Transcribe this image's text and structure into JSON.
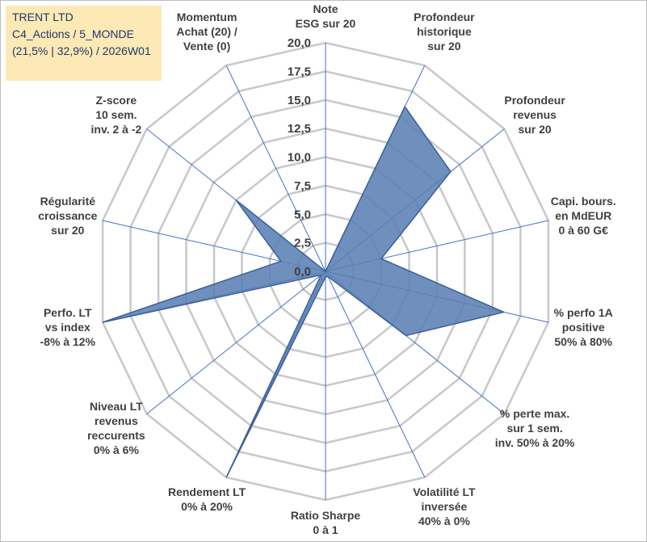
{
  "info_box": {
    "line1": "TRENT LTD",
    "line2": "C4_Actions / 5_MONDE",
    "line3": "(21,5% | 32,9%) / 2026W01"
  },
  "chart_data": {
    "type": "radar",
    "r_min": 0,
    "r_max": 20,
    "r_step": 2.5,
    "r_tick_labels": [
      "0,0",
      "2,5",
      "5,0",
      "7,5",
      "10,0",
      "12,5",
      "15,0",
      "17,5",
      "20,0"
    ],
    "axes": [
      {
        "label": [
          "Note",
          "ESG sur 20"
        ],
        "value": 0
      },
      {
        "label": [
          "Profondeur",
          "historique",
          "sur 20"
        ],
        "value": 16
      },
      {
        "label": [
          "Profondeur",
          "revenus",
          "sur 20"
        ],
        "value": 14
      },
      {
        "label": [
          "Capi. bours.",
          "en MdEUR",
          "0 à 60 G€"
        ],
        "value": 5
      },
      {
        "label": [
          "% perfo 1A",
          "positive",
          "50% à 80%"
        ],
        "value": 16
      },
      {
        "label": [
          "% perte max.",
          "sur 1 sem.",
          "inv. 50% à 20%"
        ],
        "value": 9
      },
      {
        "label": [
          "Volatilité LT",
          "inversée",
          "40% à 0%"
        ],
        "value": 0.5
      },
      {
        "label": [
          "Ratio Sharpe",
          "0 à 1"
        ],
        "value": 0.5
      },
      {
        "label": [
          "Rendement LT",
          "0% à 20%"
        ],
        "value": 20
      },
      {
        "label": [
          "Niveau LT",
          "revenus",
          "reccurents",
          "0% à 6%"
        ],
        "value": 0.5
      },
      {
        "label": [
          "Perfo. LT",
          "vs index",
          "-8% à 12%"
        ],
        "value": 20
      },
      {
        "label": [
          "Régularité",
          "croissance",
          "sur 20"
        ],
        "value": 4
      },
      {
        "label": [
          "Z-score",
          "10 sem.",
          "inv. 2 à -2"
        ],
        "value": 10
      },
      {
        "label": [
          "Momentum",
          "Achat (20) /",
          "Vente (0)"
        ],
        "value": 0
      }
    ],
    "colors": {
      "fill": "#5b80b4",
      "stroke": "#3a5f9a",
      "grid": "#c8c8c8",
      "spoke": "#4472c4",
      "text": "#404040"
    },
    "grid": true
  }
}
